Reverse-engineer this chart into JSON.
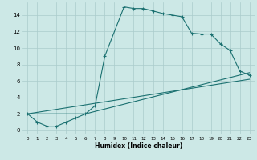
{
  "xlabel": "Humidex (Indice chaleur)",
  "bg_color": "#cce8e6",
  "grid_color": "#aacccc",
  "line_color": "#1a7070",
  "x_ticks": [
    0,
    1,
    2,
    3,
    4,
    5,
    6,
    7,
    8,
    9,
    10,
    11,
    12,
    13,
    14,
    15,
    16,
    17,
    18,
    19,
    20,
    21,
    22,
    23
  ],
  "y_ticks": [
    0,
    2,
    4,
    6,
    8,
    10,
    12,
    14
  ],
  "xlim": [
    -0.5,
    23.5
  ],
  "ylim": [
    -0.5,
    15.5
  ],
  "main_x": [
    0,
    1,
    2,
    3,
    4,
    5,
    6,
    7,
    8,
    10,
    11,
    12,
    13,
    14,
    15,
    16,
    17,
    18,
    19,
    20,
    21,
    22,
    23
  ],
  "main_y": [
    2,
    1,
    0.5,
    0.5,
    1,
    1.5,
    2,
    3,
    9,
    15,
    14.8,
    14.8,
    14.5,
    14.2,
    14,
    13.8,
    11.8,
    11.7,
    11.7,
    10.5,
    9.7,
    7.2,
    6.7
  ],
  "line2_x": [
    0,
    23
  ],
  "line2_y": [
    2,
    6.2
  ],
  "line3_x": [
    0,
    6,
    23
  ],
  "line3_y": [
    2,
    2,
    7
  ]
}
